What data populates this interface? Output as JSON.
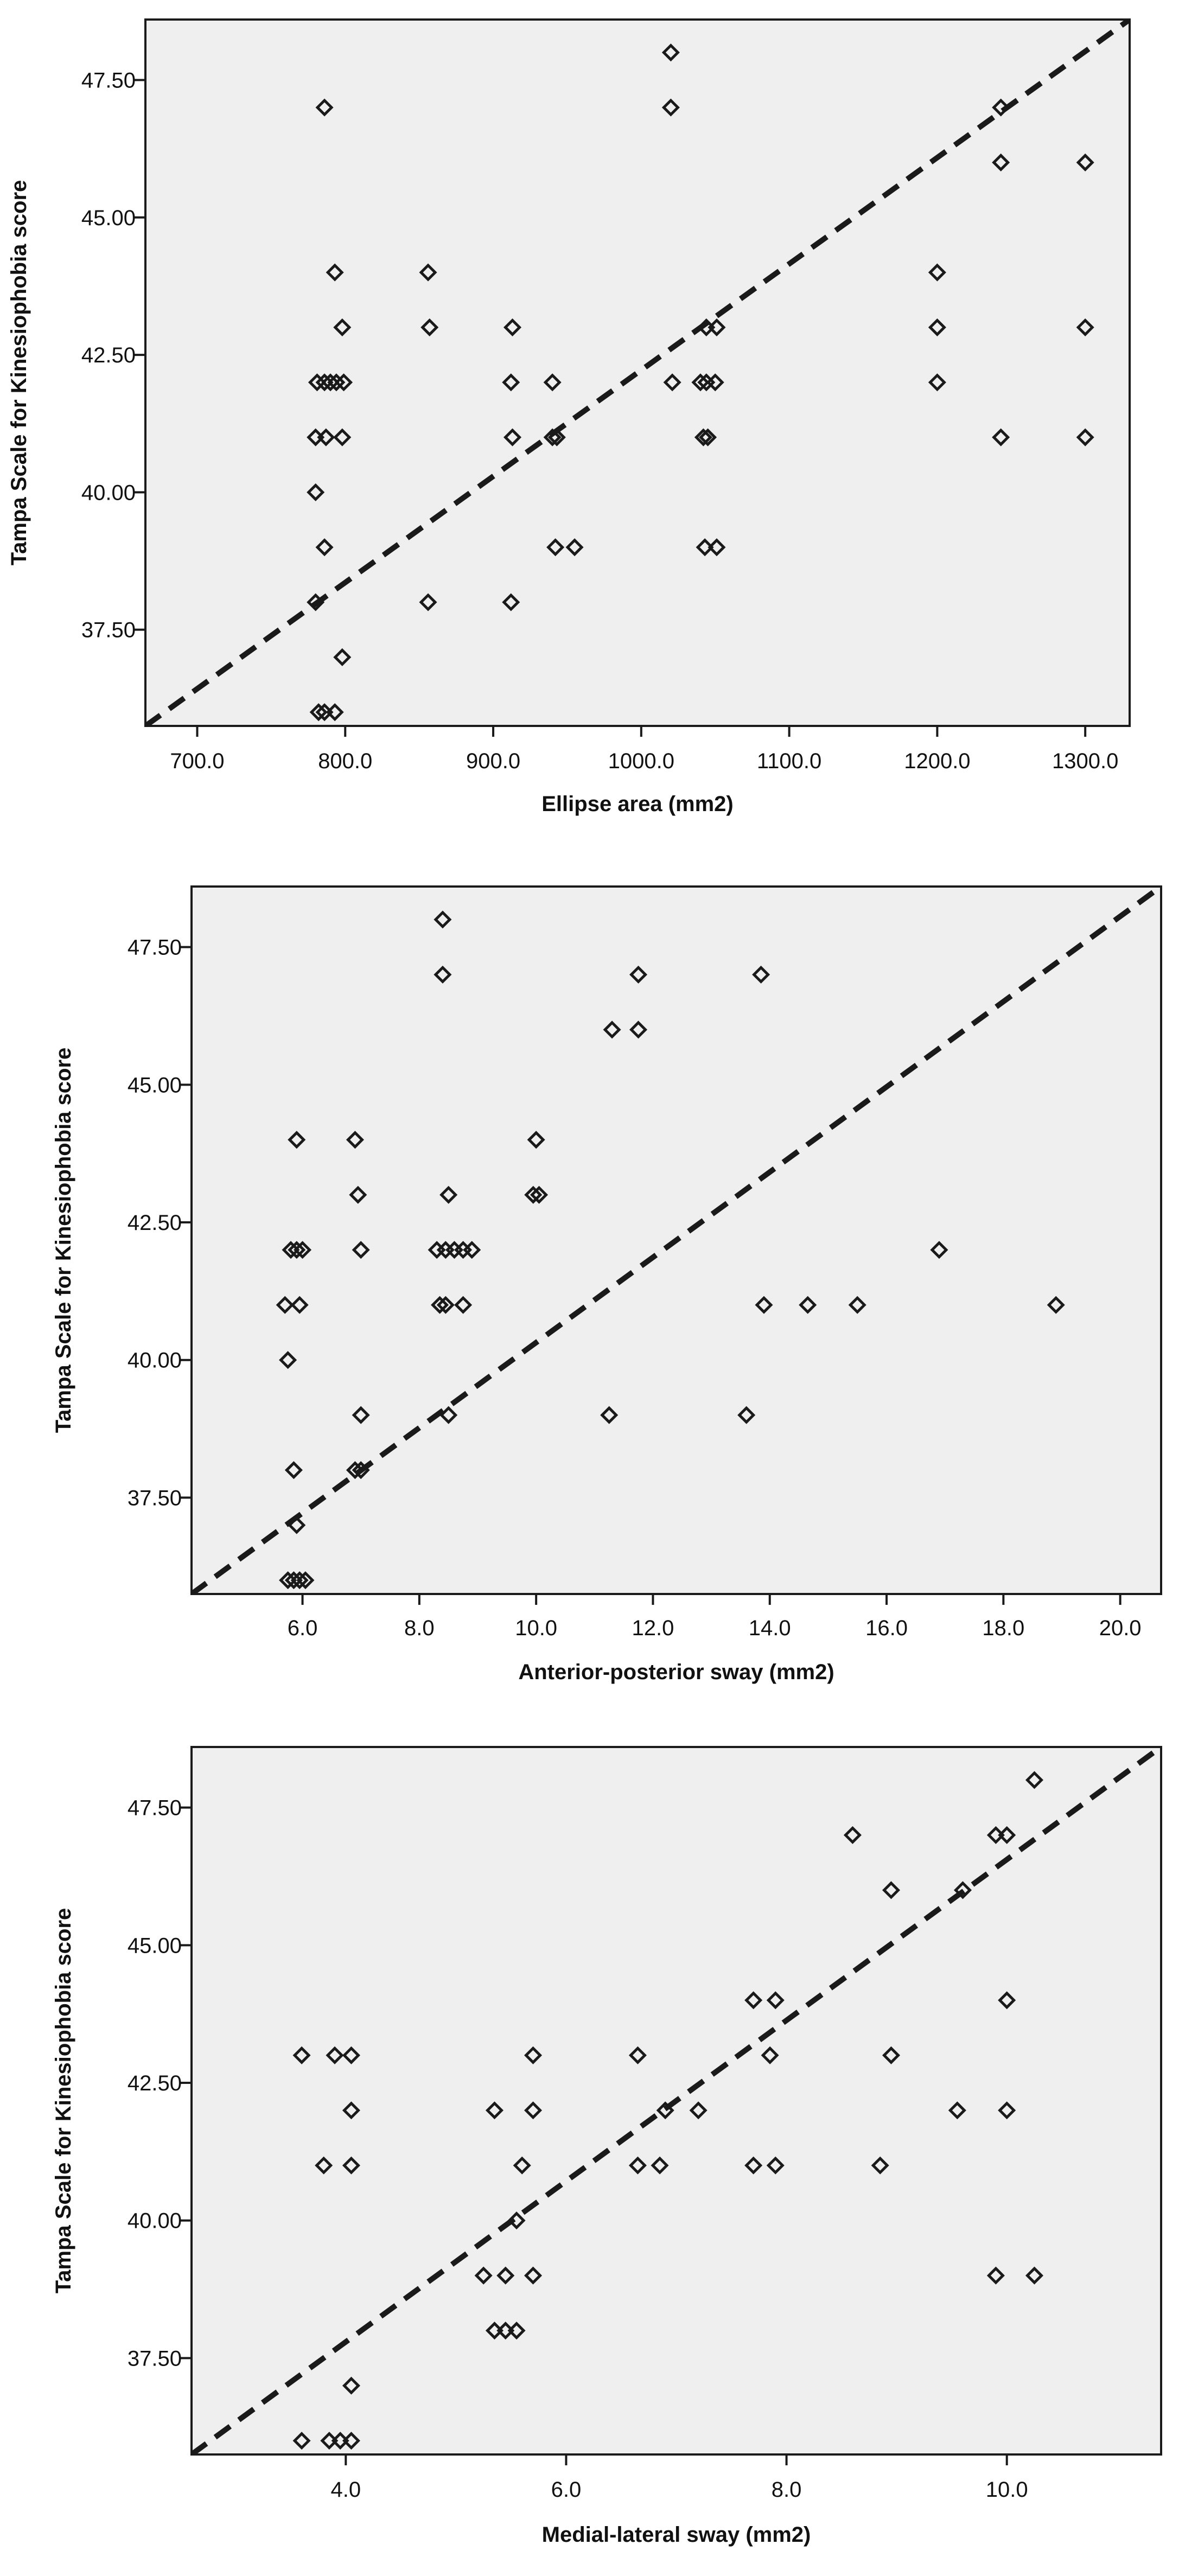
{
  "colors": {
    "plot_bg": "#efefef",
    "frame": "#1a1a1a",
    "marker": "#1a1a1a",
    "line": "#1a1a1a",
    "page_bg": "#ffffff"
  },
  "chart_data": [
    {
      "type": "scatter",
      "title": "",
      "xlabel": "Ellipse area (mm2)",
      "ylabel": "Tampa Scale for Kinesiophobia score",
      "xlim": [
        665,
        1330
      ],
      "ylim": [
        35.75,
        48.6
      ],
      "xticks": [
        700.0,
        800.0,
        900.0,
        1000.0,
        1100.0,
        1200.0,
        1300.0
      ],
      "xtick_labels": [
        "700.0",
        "800.0",
        "900.0",
        "1000.0",
        "1100.0",
        "1200.0",
        "1300.0"
      ],
      "yticks": [
        37.5,
        40.0,
        42.5,
        45.0,
        47.5
      ],
      "ytick_labels": [
        "37.50",
        "40.00",
        "42.50",
        "45.00",
        "47.50"
      ],
      "grid": false,
      "legend": "none",
      "marker": "open-diamond",
      "reference_line": "dashed diagonal",
      "points": [
        [
          786,
          47
        ],
        [
          782,
          36
        ],
        [
          786,
          36
        ],
        [
          793,
          36
        ],
        [
          780,
          38
        ],
        [
          798,
          37
        ],
        [
          786,
          39
        ],
        [
          780,
          40
        ],
        [
          780,
          41
        ],
        [
          787,
          41
        ],
        [
          798,
          41
        ],
        [
          781,
          42
        ],
        [
          786,
          42
        ],
        [
          790,
          42
        ],
        [
          794,
          42
        ],
        [
          799,
          42
        ],
        [
          798,
          43
        ],
        [
          793,
          44
        ],
        [
          856,
          44
        ],
        [
          857,
          43
        ],
        [
          856,
          38
        ],
        [
          912,
          38
        ],
        [
          913,
          41
        ],
        [
          912,
          42
        ],
        [
          913,
          43
        ],
        [
          940,
          42
        ],
        [
          940,
          41
        ],
        [
          943,
          41
        ],
        [
          942,
          39
        ],
        [
          955,
          39
        ],
        [
          1020,
          48
        ],
        [
          1020,
          47
        ],
        [
          1021,
          42
        ],
        [
          1040,
          42
        ],
        [
          1044,
          42
        ],
        [
          1050,
          42
        ],
        [
          1042,
          41
        ],
        [
          1045,
          41
        ],
        [
          1044,
          43
        ],
        [
          1051,
          43
        ],
        [
          1043,
          39
        ],
        [
          1051,
          39
        ],
        [
          1200,
          44
        ],
        [
          1200,
          43
        ],
        [
          1200,
          42
        ],
        [
          1243,
          47
        ],
        [
          1243,
          46
        ],
        [
          1243,
          41
        ],
        [
          1300,
          46
        ],
        [
          1300,
          43
        ],
        [
          1300,
          41
        ]
      ]
    },
    {
      "type": "scatter",
      "title": "",
      "xlabel": "Anterior-posterior sway (mm2)",
      "ylabel": "Tampa Scale for Kinesiophobia score",
      "xlim": [
        4.1,
        20.7
      ],
      "ylim": [
        35.75,
        48.6
      ],
      "xticks": [
        6.0,
        8.0,
        10.0,
        12.0,
        14.0,
        16.0,
        18.0,
        20.0
      ],
      "xtick_labels": [
        "6.0",
        "8.0",
        "10.0",
        "12.0",
        "14.0",
        "16.0",
        "18.0",
        "20.0"
      ],
      "yticks": [
        37.5,
        40.0,
        42.5,
        45.0,
        47.5
      ],
      "ytick_labels": [
        "37.50",
        "40.00",
        "42.50",
        "45.00",
        "47.50"
      ],
      "grid": false,
      "legend": "none",
      "marker": "open-diamond",
      "reference_line": "dashed diagonal",
      "points": [
        [
          5.75,
          36
        ],
        [
          5.85,
          36
        ],
        [
          5.95,
          36
        ],
        [
          6.05,
          36
        ],
        [
          5.9,
          37
        ],
        [
          5.85,
          38
        ],
        [
          5.75,
          40
        ],
        [
          5.7,
          41
        ],
        [
          5.95,
          41
        ],
        [
          5.8,
          42
        ],
        [
          5.9,
          42
        ],
        [
          6.0,
          42
        ],
        [
          5.9,
          44
        ],
        [
          6.9,
          44
        ],
        [
          6.95,
          43
        ],
        [
          7.0,
          42
        ],
        [
          7.0,
          39
        ],
        [
          6.9,
          38
        ],
        [
          7.0,
          38
        ],
        [
          8.4,
          48
        ],
        [
          8.4,
          47
        ],
        [
          8.5,
          43
        ],
        [
          8.5,
          39
        ],
        [
          8.3,
          42
        ],
        [
          8.45,
          42
        ],
        [
          8.6,
          42
        ],
        [
          8.75,
          42
        ],
        [
          8.9,
          42
        ],
        [
          8.35,
          41
        ],
        [
          8.45,
          41
        ],
        [
          8.75,
          41
        ],
        [
          10.0,
          44
        ],
        [
          9.95,
          43
        ],
        [
          10.05,
          43
        ],
        [
          11.3,
          46
        ],
        [
          11.75,
          46
        ],
        [
          11.75,
          47
        ],
        [
          11.25,
          39
        ],
        [
          13.6,
          39
        ],
        [
          13.85,
          47
        ],
        [
          13.9,
          41
        ],
        [
          14.65,
          41
        ],
        [
          15.5,
          41
        ],
        [
          16.9,
          42
        ],
        [
          18.9,
          41
        ]
      ]
    },
    {
      "type": "scatter",
      "title": "",
      "xlabel": "Medial-lateral sway (mm2)",
      "ylabel": "Tampa Scale for Kinesiophobia score",
      "xlim": [
        2.6,
        11.4
      ],
      "ylim": [
        35.75,
        48.6
      ],
      "xticks": [
        4.0,
        6.0,
        8.0,
        10.0
      ],
      "xtick_labels": [
        "4.0",
        "6.0",
        "8.0",
        "10.0"
      ],
      "yticks": [
        37.5,
        40.0,
        42.5,
        45.0,
        47.5
      ],
      "ytick_labels": [
        "37.50",
        "40.00",
        "42.50",
        "45.00",
        "47.50"
      ],
      "grid": false,
      "legend": "none",
      "marker": "open-diamond",
      "reference_line": "dashed diagonal",
      "points": [
        [
          3.6,
          43
        ],
        [
          3.9,
          43
        ],
        [
          4.05,
          43
        ],
        [
          3.8,
          41
        ],
        [
          4.05,
          41
        ],
        [
          4.05,
          42
        ],
        [
          3.6,
          36
        ],
        [
          3.85,
          36
        ],
        [
          3.95,
          36
        ],
        [
          4.05,
          36
        ],
        [
          4.05,
          37
        ],
        [
          5.35,
          42
        ],
        [
          5.35,
          38
        ],
        [
          5.45,
          38
        ],
        [
          5.55,
          38
        ],
        [
          5.6,
          41
        ],
        [
          5.7,
          43
        ],
        [
          5.7,
          42
        ],
        [
          5.25,
          39
        ],
        [
          5.45,
          39
        ],
        [
          5.7,
          39
        ],
        [
          5.55,
          40
        ],
        [
          6.65,
          43
        ],
        [
          6.65,
          41
        ],
        [
          6.85,
          41
        ],
        [
          6.9,
          42
        ],
        [
          7.2,
          42
        ],
        [
          7.7,
          44
        ],
        [
          7.7,
          41
        ],
        [
          7.85,
          43
        ],
        [
          7.9,
          44
        ],
        [
          7.9,
          41
        ],
        [
          8.6,
          47
        ],
        [
          8.85,
          41
        ],
        [
          8.95,
          46
        ],
        [
          8.95,
          43
        ],
        [
          9.55,
          42
        ],
        [
          9.6,
          46
        ],
        [
          9.9,
          47
        ],
        [
          10.0,
          47
        ],
        [
          10.0,
          44
        ],
        [
          10.0,
          42
        ],
        [
          9.9,
          39
        ],
        [
          10.25,
          39
        ],
        [
          10.25,
          48
        ]
      ]
    }
  ]
}
